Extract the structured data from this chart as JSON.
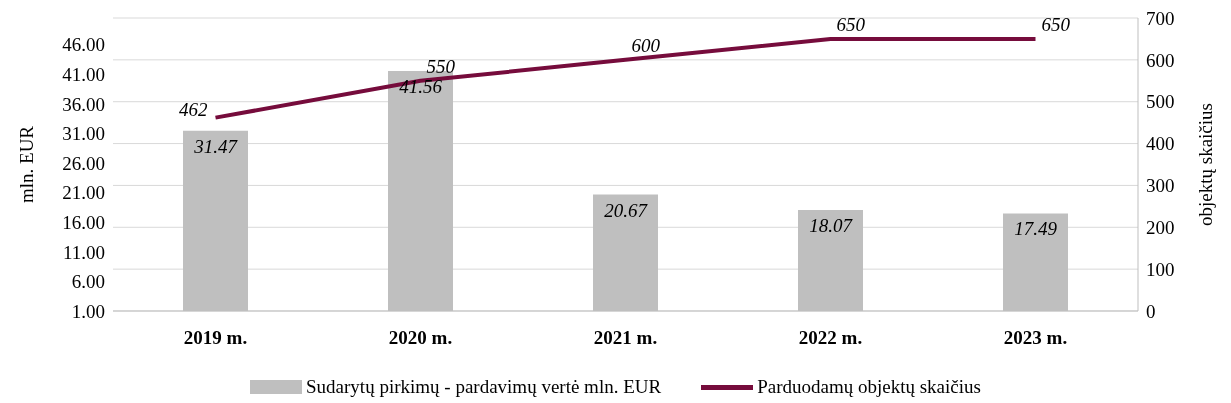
{
  "chart_data": {
    "type": "bar",
    "categories": [
      "2019 m.",
      "2020 m.",
      "2021 m.",
      "2022 m.",
      "2023 m."
    ],
    "series": [
      {
        "name": "Sudarytų pirkimų - pardavimų vertė mln. EUR",
        "color": "#bfbfbf",
        "values": [
          31.47,
          41.56,
          20.67,
          18.07,
          17.49
        ]
      },
      {
        "name": "Parduodamų objektų skaičius",
        "type": "line",
        "axis": "y2",
        "color": "#760c3c",
        "values": [
          462,
          550,
          600,
          650,
          650
        ]
      }
    ],
    "ylabel": "mln. EUR",
    "y2label": "objektų skaičius",
    "ylim": [
      1,
      50.5
    ],
    "yticks": [
      {
        "value": 1,
        "label": "1.00"
      },
      {
        "value": 6,
        "label": "6.00"
      },
      {
        "value": 11,
        "label": "11.00"
      },
      {
        "value": 16,
        "label": "16.00"
      },
      {
        "value": 21,
        "label": "21.00"
      },
      {
        "value": 26,
        "label": "26.00"
      },
      {
        "value": 31,
        "label": "31.00"
      },
      {
        "value": 36,
        "label": "36.00"
      },
      {
        "value": 41,
        "label": "41.00"
      },
      {
        "value": 46,
        "label": "46.00"
      }
    ],
    "y2lim": [
      0,
      700
    ],
    "y2ticks": [
      0,
      100,
      200,
      300,
      400,
      500,
      600,
      700
    ],
    "grid": "y",
    "legend": "bottom",
    "data_labels": true,
    "marker": "none"
  }
}
